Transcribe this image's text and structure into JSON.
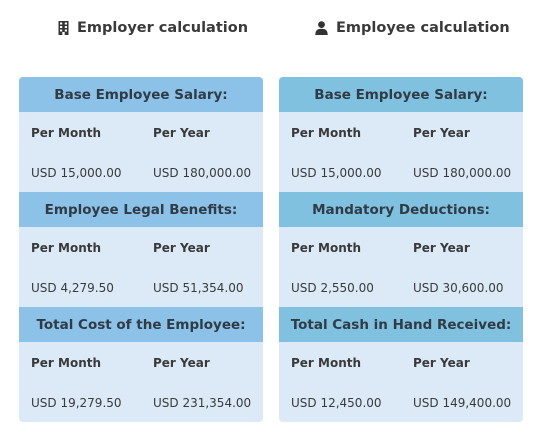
{
  "columns": [
    {
      "title": "Employer calculation",
      "icon": "building-icon",
      "sections": [
        {
          "header": "Base Employee Salary:",
          "month_label": "Per Month",
          "year_label": "Per Year",
          "month_value": "USD 15,000.00",
          "year_value": "USD 180,000.00"
        },
        {
          "header": "Employee Legal Benefits:",
          "month_label": "Per Month",
          "year_label": "Per Year",
          "month_value": "USD 4,279.50",
          "year_value": "USD 51,354.00"
        },
        {
          "header": "Total Cost of the Employee:",
          "month_label": "Per Month",
          "year_label": "Per Year",
          "month_value": "USD 19,279.50",
          "year_value": "USD 231,354.00"
        }
      ]
    },
    {
      "title": "Employee calculation",
      "icon": "user-icon",
      "sections": [
        {
          "header": "Base Employee Salary:",
          "month_label": "Per Month",
          "year_label": "Per Year",
          "month_value": "USD 15,000.00",
          "year_value": "USD 180,000.00"
        },
        {
          "header": "Mandatory Deductions:",
          "month_label": "Per Month",
          "year_label": "Per Year",
          "month_value": "USD 2,550.00",
          "year_value": "USD 30,600.00"
        },
        {
          "header": "Total Cash in Hand Received:",
          "month_label": "Per Month",
          "year_label": "Per Year",
          "month_value": "USD 12,450.00",
          "year_value": "USD 149,400.00"
        }
      ]
    }
  ],
  "colors": {
    "card_bg": "#dbeaf6",
    "employer_header_bg": "#8cc1e8",
    "employee_header_bg": "#81c1e0"
  }
}
